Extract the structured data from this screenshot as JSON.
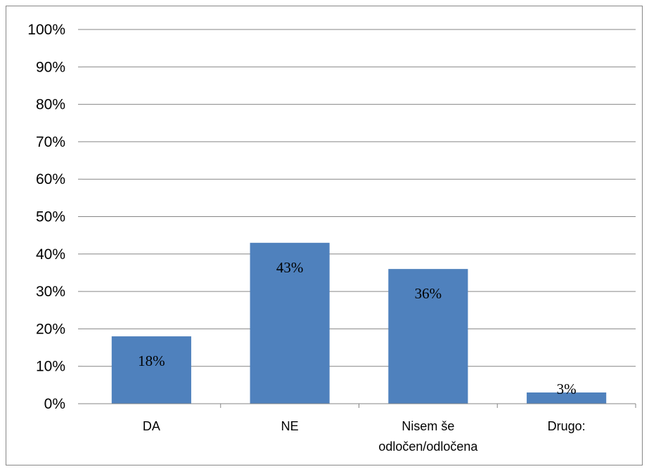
{
  "chart_data": {
    "type": "bar",
    "categories": [
      "DA",
      "NE",
      "Nisem še odločen/odločena",
      "Drugo:"
    ],
    "category_lines": [
      [
        "DA"
      ],
      [
        "NE"
      ],
      [
        "Nisem še",
        "odločen/odločena"
      ],
      [
        "Drugo:"
      ]
    ],
    "values": [
      18,
      43,
      36,
      3
    ],
    "data_labels": [
      "18%",
      "43%",
      "36%",
      "3%"
    ],
    "ylim": [
      0,
      100
    ],
    "yticks": [
      0,
      10,
      20,
      30,
      40,
      50,
      60,
      70,
      80,
      90,
      100
    ],
    "ytick_labels": [
      "0%",
      "10%",
      "20%",
      "30%",
      "40%",
      "50%",
      "60%",
      "70%",
      "80%",
      "90%",
      "100%"
    ],
    "grid": true,
    "legend": "none",
    "bar_color": "#4F81BD",
    "grid_color": "#868686"
  }
}
